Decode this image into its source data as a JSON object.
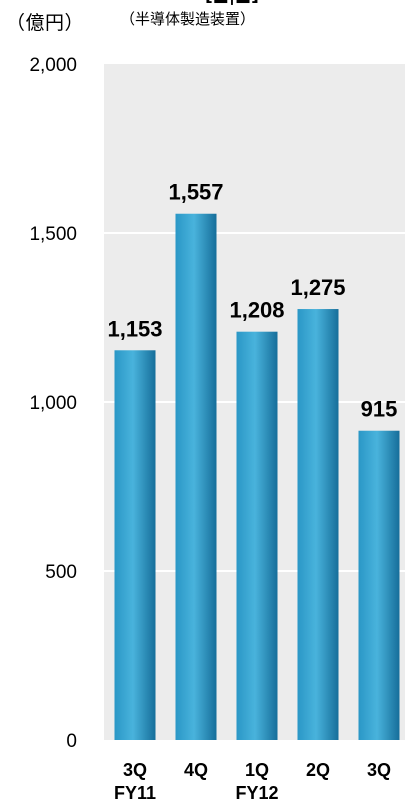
{
  "header": {
    "unit_label": "（億円）",
    "sub_label": "（半導体製造装置）",
    "cut_title": "[■|■]"
  },
  "chart_data": {
    "type": "bar",
    "categories": [
      "3Q",
      "4Q",
      "1Q",
      "2Q",
      "3Q"
    ],
    "fiscal_year_labels": [
      "FY11",
      "",
      "FY12",
      "",
      ""
    ],
    "values": [
      1153,
      1557,
      1208,
      1275,
      915
    ],
    "value_labels": [
      "1,153",
      "1,557",
      "1,208",
      "1,275",
      "915"
    ],
    "yticks": [
      0,
      500,
      1000,
      1500,
      2000
    ],
    "ytick_labels": [
      "0",
      "500",
      "1,000",
      "1,500",
      "2,000"
    ],
    "ylim": [
      0,
      2000
    ],
    "grid": true,
    "colors": {
      "bar": "#1f86b5",
      "bar_light": "#45afd8",
      "plot_bg": "#ececec"
    }
  }
}
